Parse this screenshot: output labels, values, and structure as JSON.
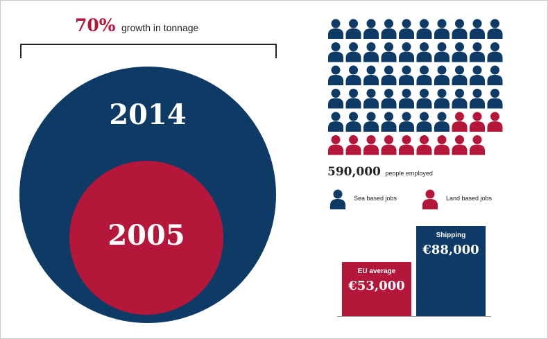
{
  "tonnage": {
    "growth_pct": "70%",
    "growth_label": "growth in tonnage",
    "year_recent": "2014",
    "year_earlier": "2005"
  },
  "employment": {
    "total": "590,000",
    "total_label": "people employed",
    "icon_rows": 6,
    "icon_cols": 10,
    "sea_icons": 47,
    "land_icons": 12,
    "colors": {
      "sea": "#0e3a66",
      "land": "#b5173a"
    },
    "legend": {
      "sea_label": "Sea based jobs",
      "land_label": "Land based jobs"
    }
  },
  "salaries": {
    "eu_label": "EU average",
    "eu_value": "€53,000",
    "shipping_label": "Shipping",
    "shipping_value": "€88,000"
  }
}
